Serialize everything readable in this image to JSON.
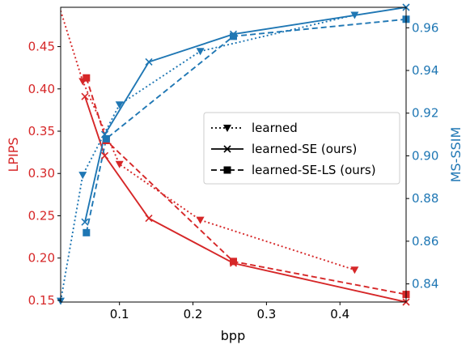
{
  "chart_data": {
    "type": "line",
    "xlabel": "bpp",
    "ylabel_left": "LPIPS",
    "ylabel_right": "MS-SSIM",
    "xlim": [
      0.02,
      0.49
    ],
    "ylim_left": [
      0.148,
      0.4965
    ],
    "ylim_right": [
      0.8315,
      0.9696
    ],
    "x_ticks": [
      "0.1",
      "0.2",
      "0.3",
      "0.4"
    ],
    "left_ticks": [
      "0.15",
      "0.20",
      "0.25",
      "0.30",
      "0.35",
      "0.40",
      "0.45"
    ],
    "right_ticks": [
      "0.84",
      "0.86",
      "0.88",
      "0.90",
      "0.92",
      "0.94",
      "0.96"
    ],
    "left_color": "#d62728",
    "right_color": "#1f77b4",
    "legend": {
      "position": "right-center",
      "entries": [
        {
          "label": "learned",
          "style": "dotted",
          "marker": "triangle-down"
        },
        {
          "label": "learned-SE (ours)",
          "style": "solid",
          "marker": "x"
        },
        {
          "label": "learned-SE-LS (ours)",
          "style": "dashed",
          "marker": "square"
        }
      ]
    },
    "series": [
      {
        "name": "learned",
        "metric": "LPIPS",
        "axis": "left",
        "style": "dotted",
        "marker": "triangle-down",
        "x": [
          0.01,
          0.05,
          0.1,
          0.21,
          0.42
        ],
        "y": [
          0.52,
          0.409,
          0.311,
          0.245,
          0.186
        ]
      },
      {
        "name": "learned-SE (ours)",
        "metric": "LPIPS",
        "axis": "left",
        "style": "solid",
        "marker": "x",
        "x": [
          0.053,
          0.08,
          0.14,
          0.255,
          0.49
        ],
        "y": [
          0.391,
          0.321,
          0.247,
          0.194,
          0.148
        ]
      },
      {
        "name": "learned-SE-LS (ours)",
        "metric": "LPIPS",
        "axis": "left",
        "style": "dashed",
        "marker": "square",
        "x": [
          0.055,
          0.082,
          0.255,
          0.49
        ],
        "y": [
          0.413,
          0.339,
          0.196,
          0.157
        ]
      },
      {
        "name": "learned",
        "metric": "MS-SSIM",
        "axis": "right",
        "style": "dotted",
        "marker": "triangle-down",
        "x": [
          0.02,
          0.05,
          0.1,
          0.21,
          0.42
        ],
        "y": [
          0.832,
          0.891,
          0.924,
          0.949,
          0.966
        ]
      },
      {
        "name": "learned-SE (ours)",
        "metric": "MS-SSIM",
        "axis": "right",
        "style": "solid",
        "marker": "x",
        "x": [
          0.053,
          0.08,
          0.14,
          0.255,
          0.49
        ],
        "y": [
          0.869,
          0.91,
          0.944,
          0.957,
          0.9696
        ]
      },
      {
        "name": "learned-SE-LS (ours)",
        "metric": "MS-SSIM",
        "axis": "right",
        "style": "dashed",
        "marker": "square",
        "x": [
          0.055,
          0.082,
          0.255,
          0.49
        ],
        "y": [
          0.864,
          0.908,
          0.956,
          0.964
        ]
      }
    ]
  }
}
